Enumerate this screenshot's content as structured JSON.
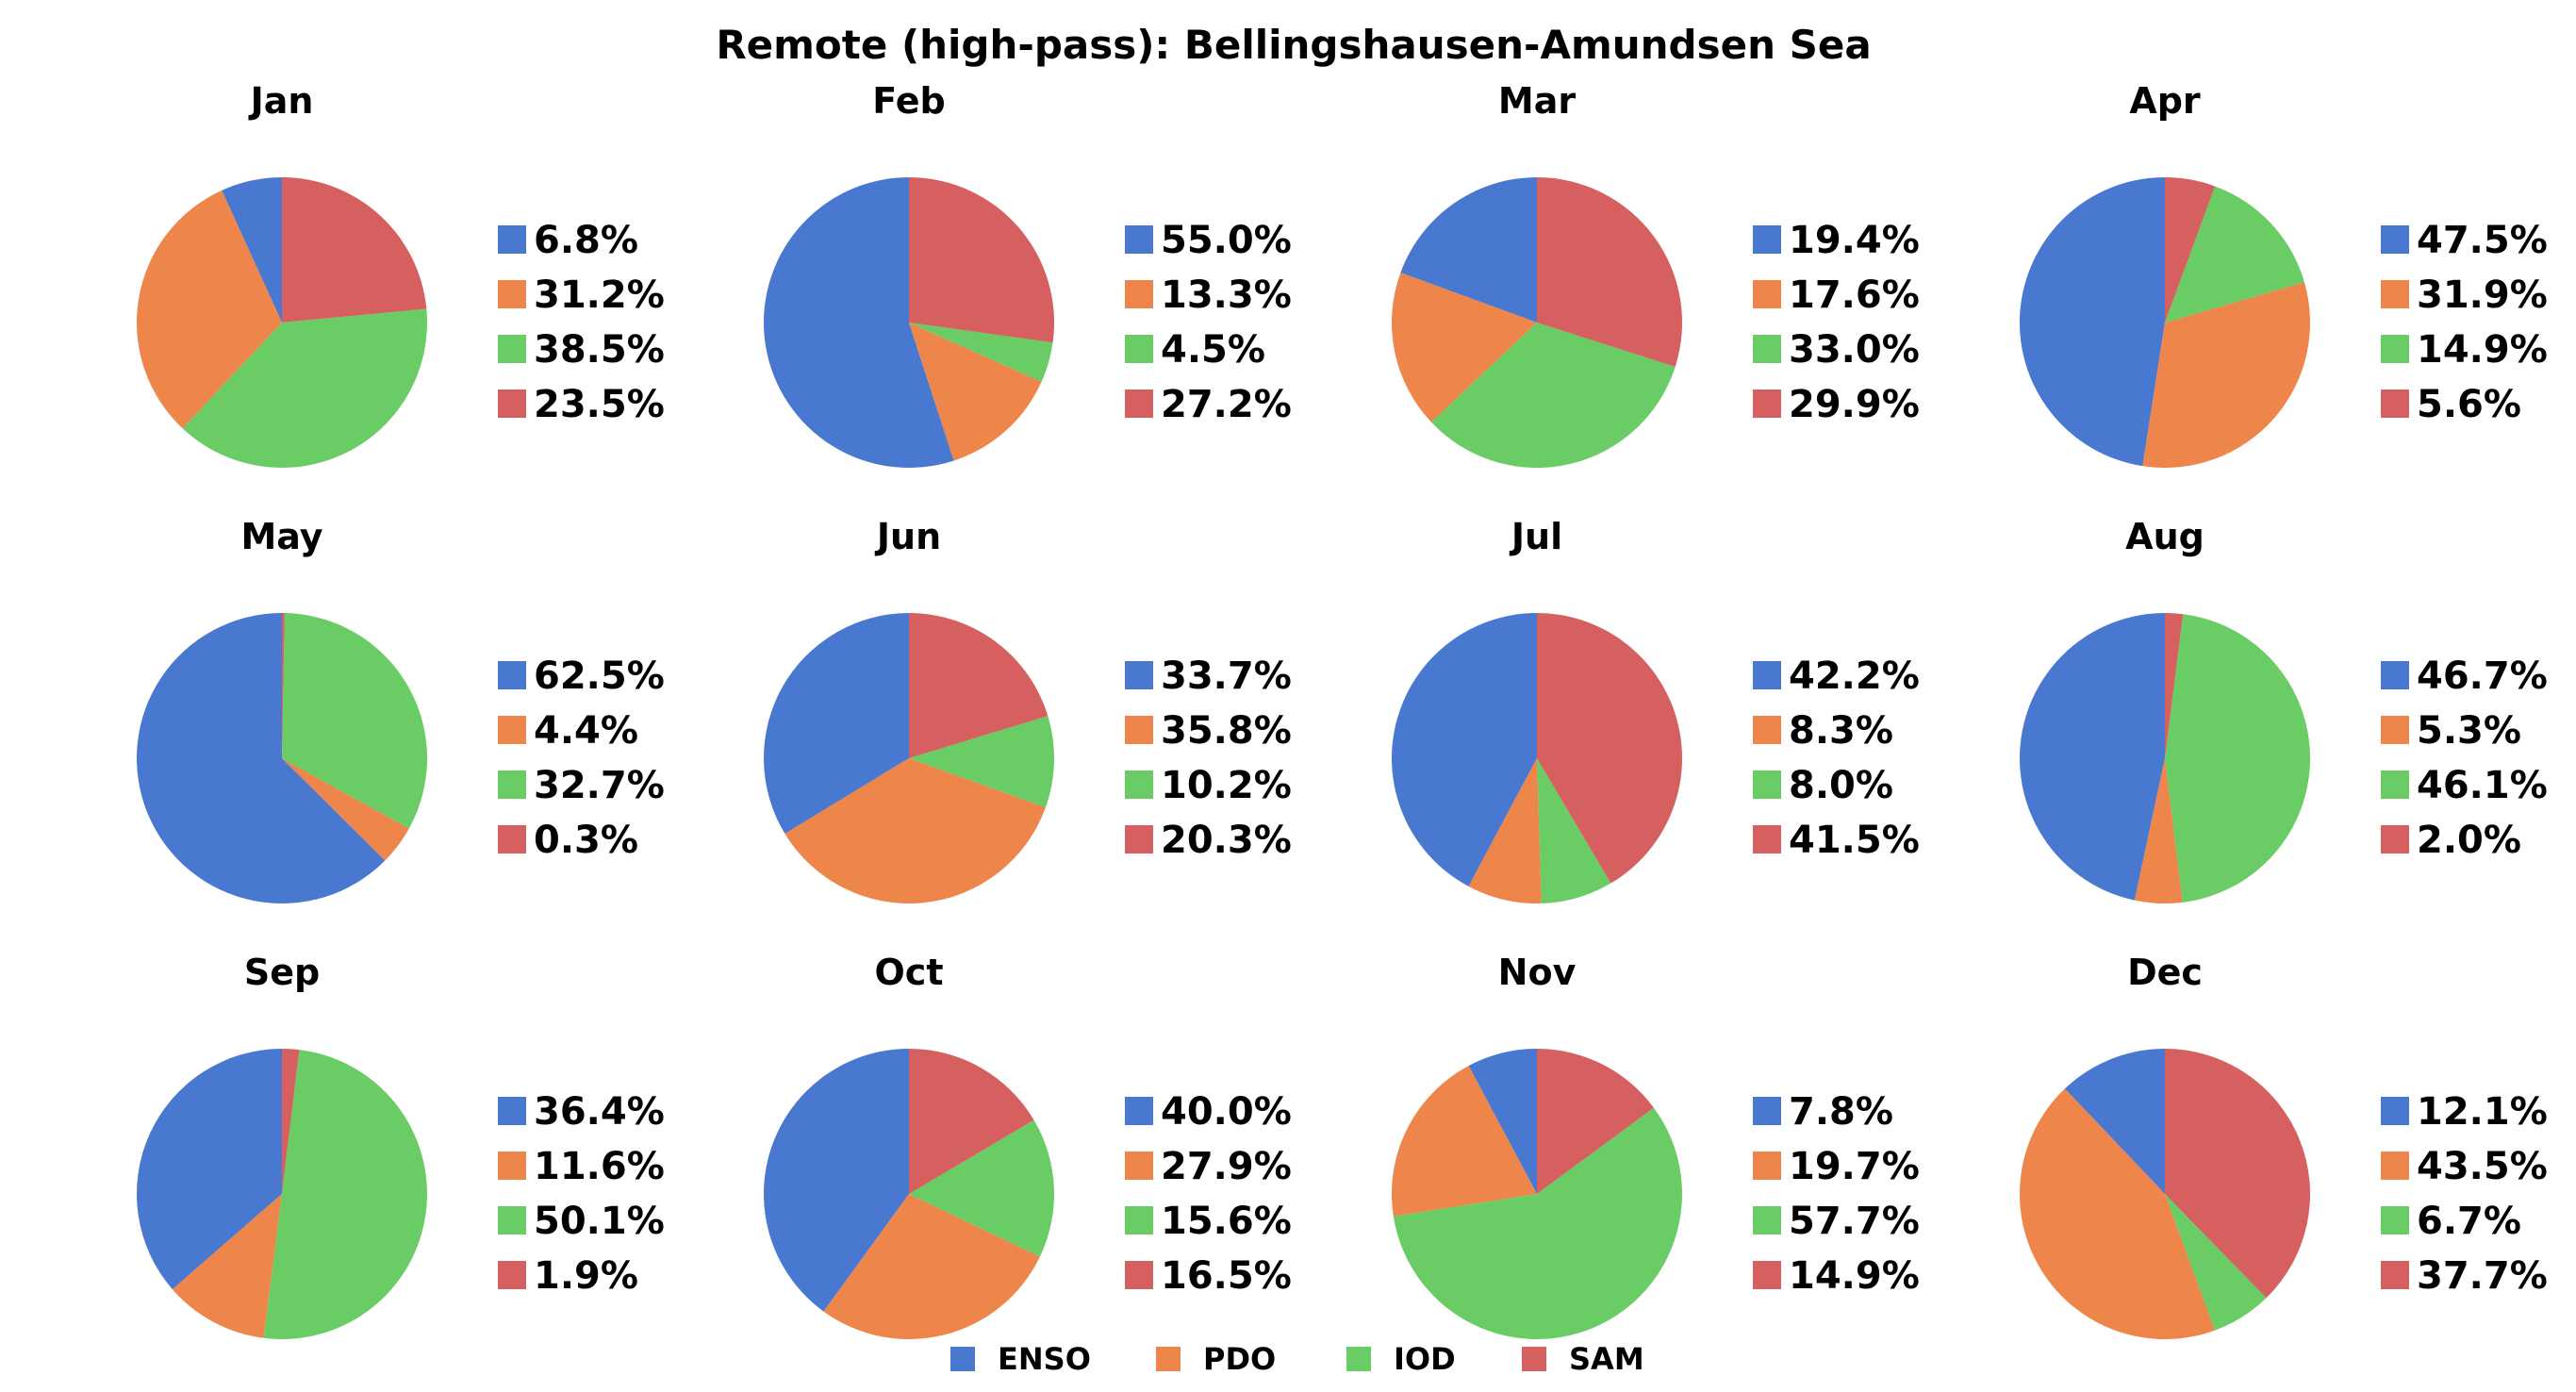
{
  "chart_data": {
    "type": "pie",
    "title": "Remote (high-pass): Bellingshausen-Amundsen Sea",
    "series_names": [
      "ENSO",
      "PDO",
      "IOD",
      "SAM"
    ],
    "colors": [
      "#4878d0",
      "#ee854a",
      "#6acc64",
      "#d65f5f"
    ],
    "legend_position": "bottom-center",
    "start_angle": "top, counterclockwise",
    "pies": [
      {
        "month": "Jan",
        "values": [
          6.8,
          31.2,
          38.5,
          23.5
        ],
        "labels": [
          "6.8%",
          "31.2%",
          "38.5%",
          "23.5%"
        ]
      },
      {
        "month": "Feb",
        "values": [
          55.0,
          13.3,
          4.5,
          27.2
        ],
        "labels": [
          "55.0%",
          "13.3%",
          "4.5%",
          "27.2%"
        ]
      },
      {
        "month": "Mar",
        "values": [
          19.4,
          17.6,
          33.0,
          29.9
        ],
        "labels": [
          "19.4%",
          "17.6%",
          "33.0%",
          "29.9%"
        ]
      },
      {
        "month": "Apr",
        "values": [
          47.5,
          31.9,
          14.9,
          5.6
        ],
        "labels": [
          "47.5%",
          "31.9%",
          "14.9%",
          "5.6%"
        ]
      },
      {
        "month": "May",
        "values": [
          62.5,
          4.4,
          32.7,
          0.3
        ],
        "labels": [
          "62.5%",
          "4.4%",
          "32.7%",
          "0.3%"
        ]
      },
      {
        "month": "Jun",
        "values": [
          33.7,
          35.8,
          10.2,
          20.3
        ],
        "labels": [
          "33.7%",
          "35.8%",
          "10.2%",
          "20.3%"
        ]
      },
      {
        "month": "Jul",
        "values": [
          42.2,
          8.3,
          8.0,
          41.5
        ],
        "labels": [
          "42.2%",
          "8.3%",
          "8.0%",
          "41.5%"
        ]
      },
      {
        "month": "Aug",
        "values": [
          46.7,
          5.3,
          46.1,
          2.0
        ],
        "labels": [
          "46.7%",
          "5.3%",
          "46.1%",
          "2.0%"
        ]
      },
      {
        "month": "Sep",
        "values": [
          36.4,
          11.6,
          50.1,
          1.9
        ],
        "labels": [
          "36.4%",
          "11.6%",
          "50.1%",
          "1.9%"
        ]
      },
      {
        "month": "Oct",
        "values": [
          40.0,
          27.9,
          15.6,
          16.5
        ],
        "labels": [
          "40.0%",
          "27.9%",
          "15.6%",
          "16.5%"
        ]
      },
      {
        "month": "Nov",
        "values": [
          7.8,
          19.7,
          57.7,
          14.9
        ],
        "labels": [
          "7.8%",
          "19.7%",
          "57.7%",
          "14.9%"
        ]
      },
      {
        "month": "Dec",
        "values": [
          12.1,
          43.5,
          6.7,
          37.7
        ],
        "labels": [
          "12.1%",
          "43.5%",
          "6.7%",
          "37.7%"
        ]
      }
    ]
  }
}
